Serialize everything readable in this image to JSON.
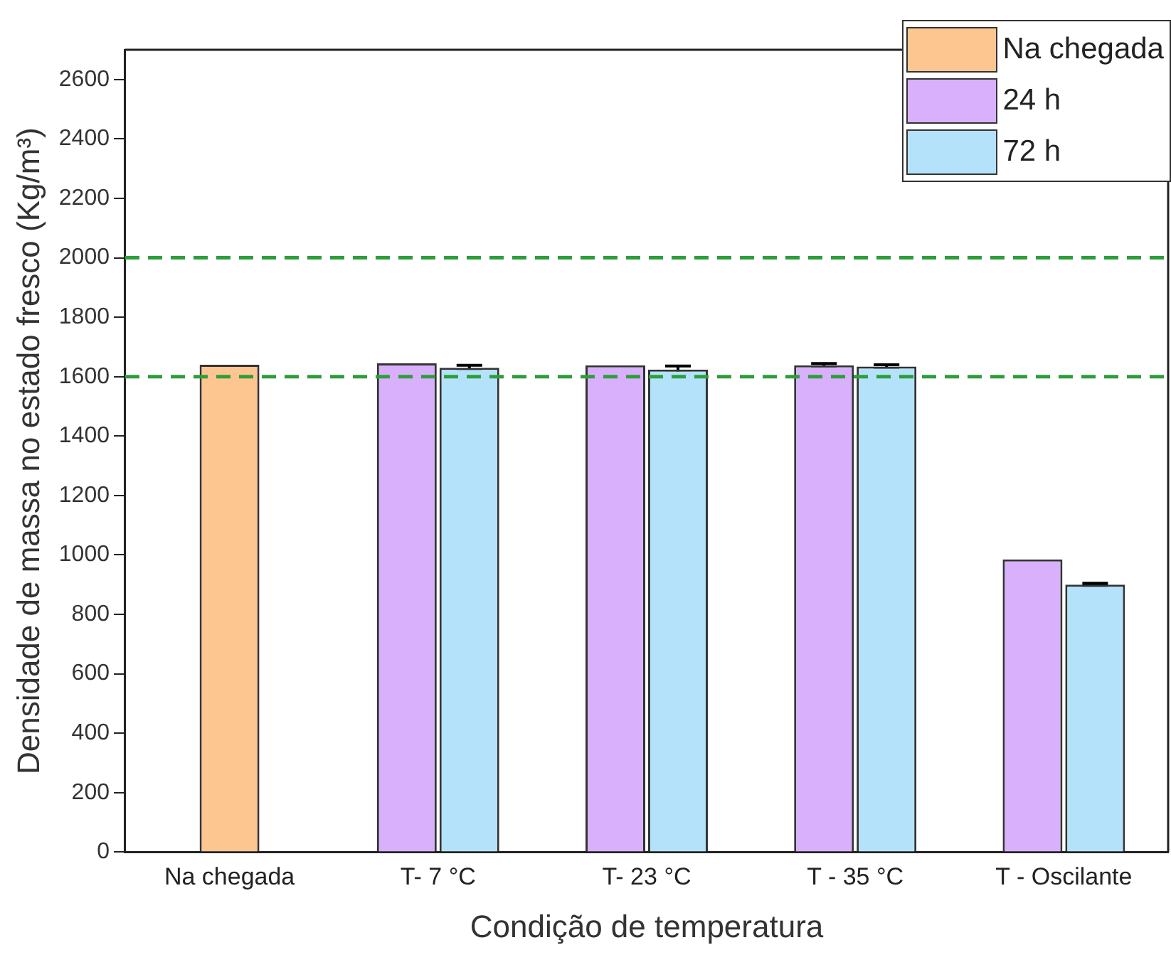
{
  "chart_data": {
    "type": "bar",
    "xlabel": "Condição de temperatura",
    "ylabel": "Densidade de massa no estado fresco (Kg/m³)",
    "categories": [
      "Na chegada",
      "T- 7 °C",
      "T- 23 °C",
      "T - 35 °C",
      "T - Oscilante"
    ],
    "series": [
      {
        "name": "Na chegada",
        "color": "#fdc590",
        "values": [
          1640,
          null,
          null,
          null,
          null
        ]
      },
      {
        "name": "24 h",
        "color": "#d8b0fc",
        "values": [
          null,
          1645,
          1638,
          1638,
          985
        ],
        "errors": [
          null,
          null,
          null,
          6,
          null
        ]
      },
      {
        "name": "72 h",
        "color": "#b4e2fa",
        "values": [
          null,
          1630,
          1624,
          1634,
          900
        ],
        "errors": [
          null,
          8,
          12,
          6,
          5
        ]
      }
    ],
    "ylim": [
      0,
      2700
    ],
    "yticks": [
      0,
      200,
      400,
      600,
      800,
      1000,
      1200,
      1400,
      1600,
      1800,
      2000,
      2200,
      2400,
      2600
    ],
    "ref_lines": [
      {
        "axis": "y",
        "value": 1600,
        "color": "#2e9e3a",
        "line_style": "dashed"
      },
      {
        "axis": "y",
        "value": 2000,
        "color": "#2e9e3a",
        "line_style": "dashed"
      }
    ],
    "grid": false,
    "legend": "top right"
  }
}
